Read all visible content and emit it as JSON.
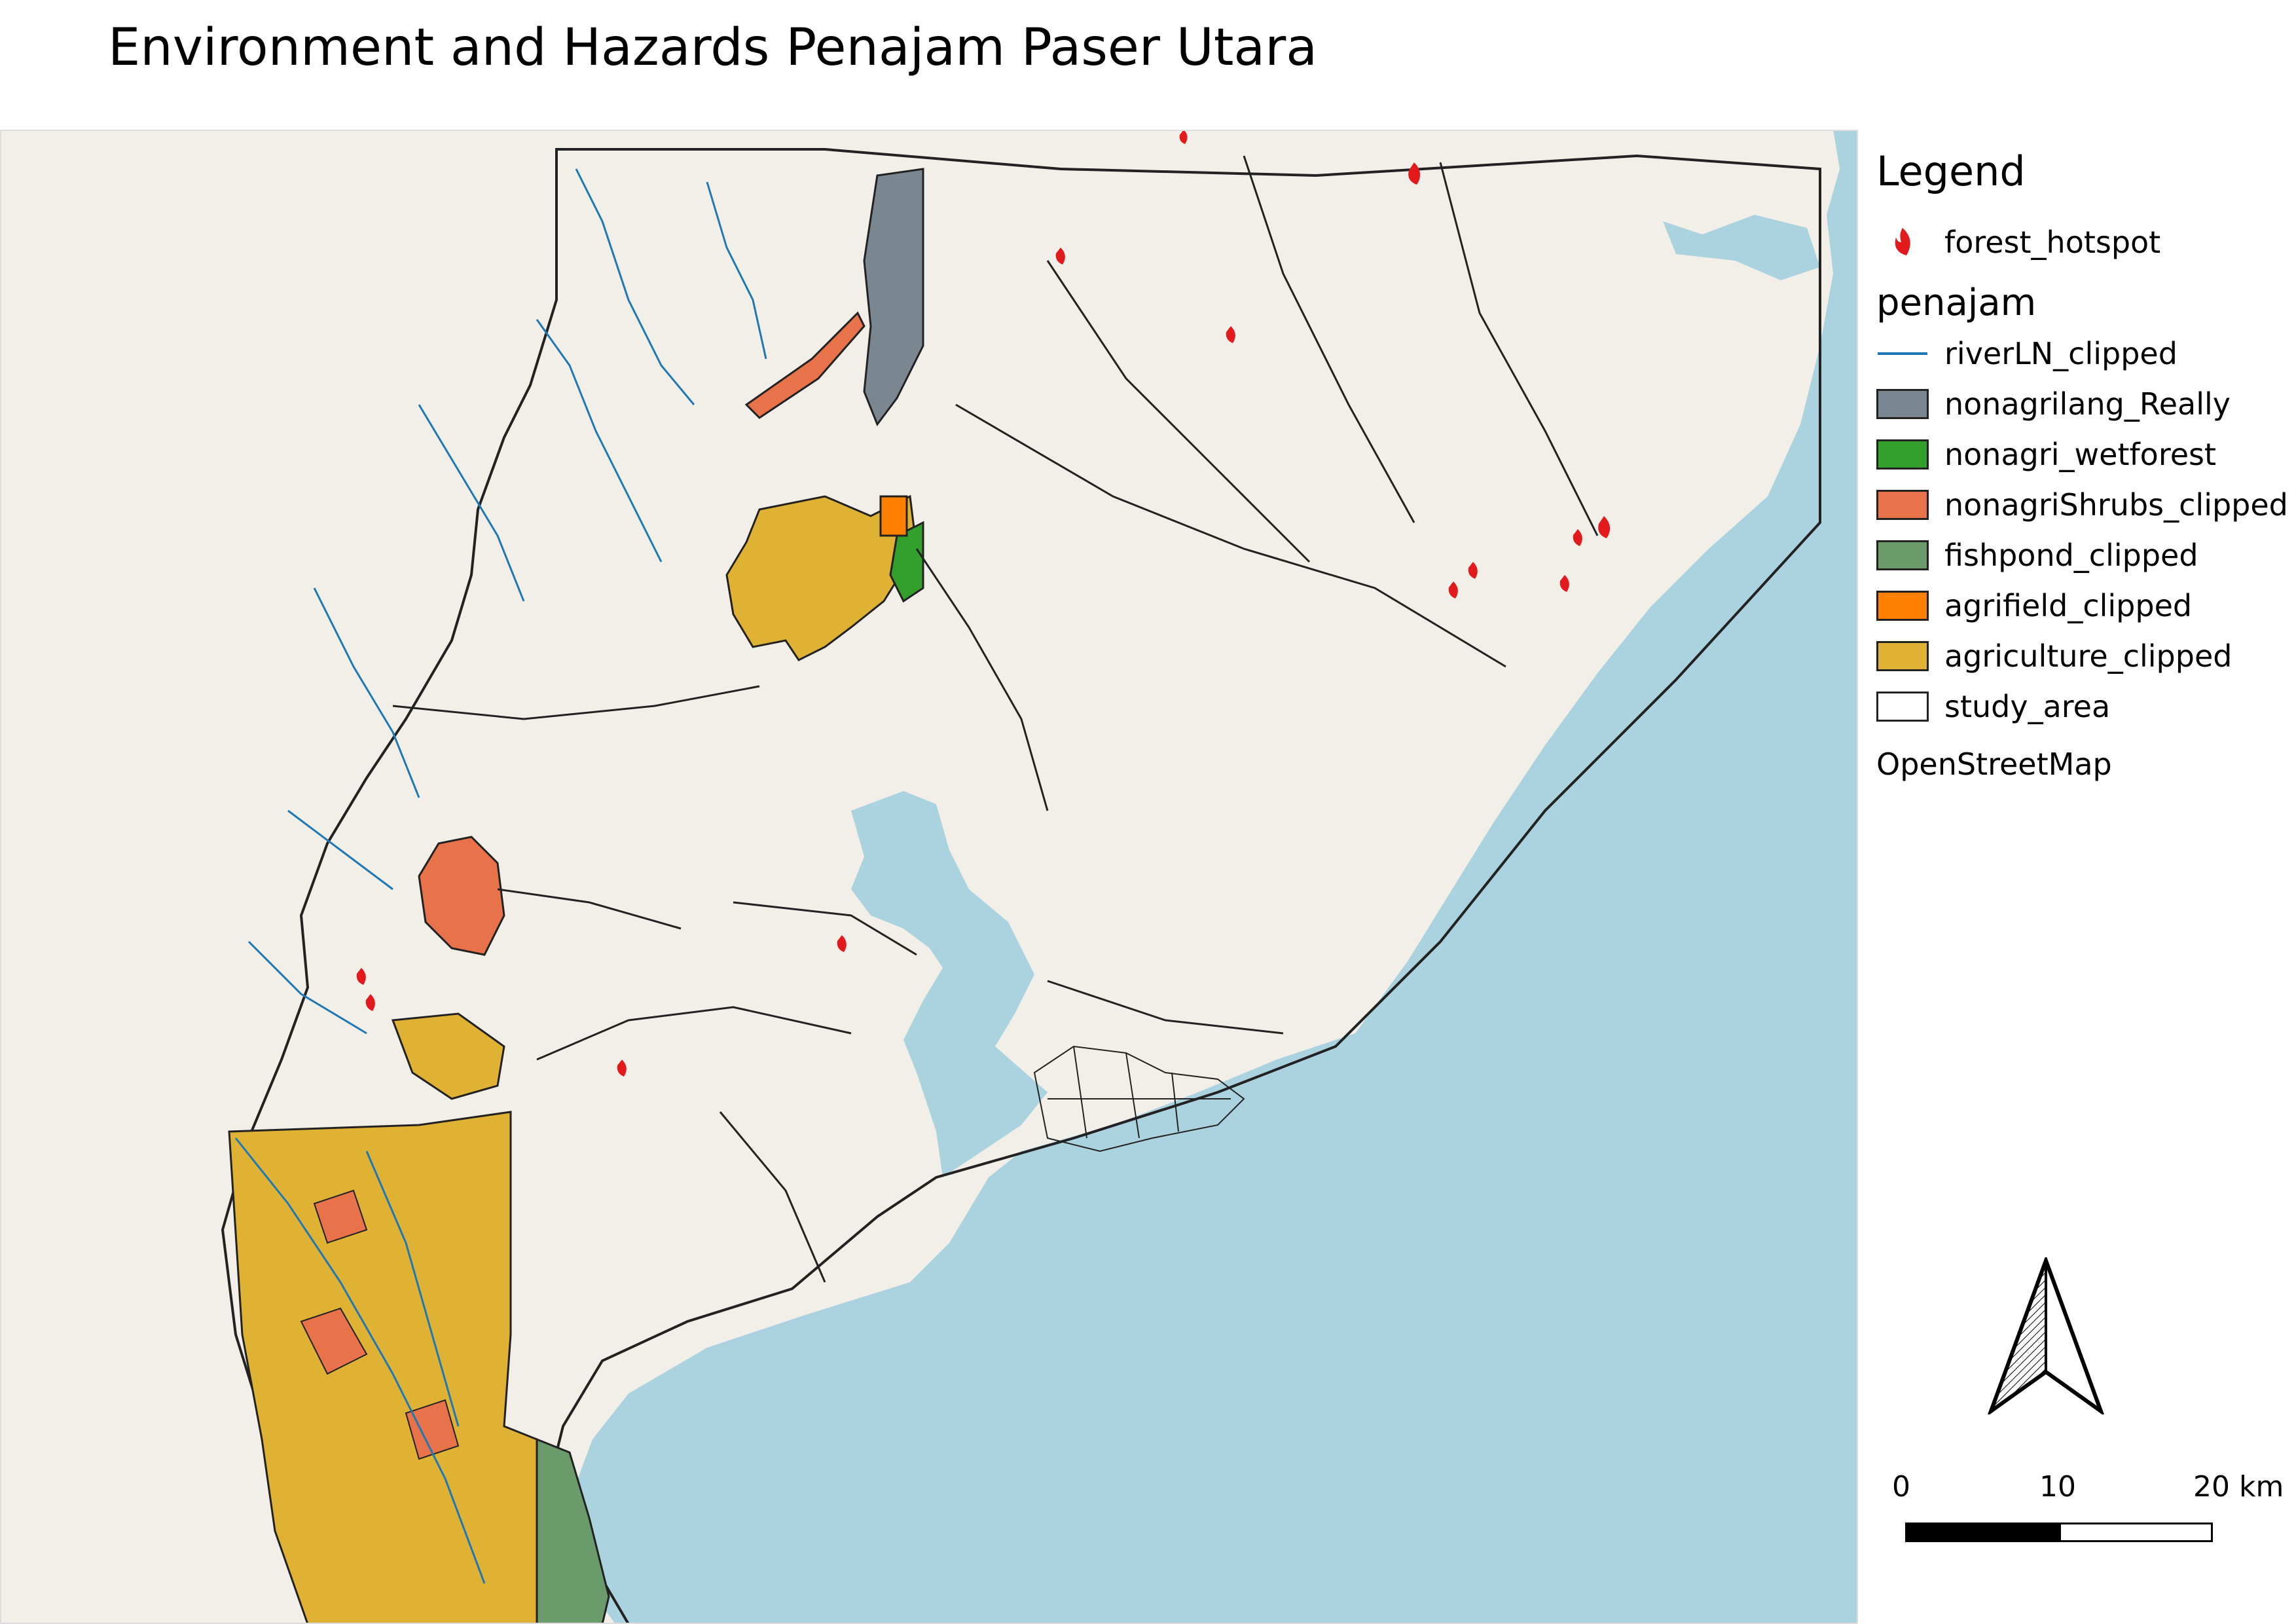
{
  "title": "Environment and Hazards Penajam Paser Utara",
  "legend": {
    "heading": "Legend",
    "hotspot_group": {
      "label": "forest_hotspot",
      "icon": "flame-icon",
      "color": "#e31a1c"
    },
    "group_name": "penajam",
    "items": [
      {
        "label": "riverLN_clipped",
        "kind": "line",
        "color": "#1f78b4"
      },
      {
        "label": "nonagrilang_Really",
        "kind": "fill",
        "color": "#7a8791"
      },
      {
        "label": "nonagri_wetforest",
        "kind": "fill",
        "color": "#33a02c"
      },
      {
        "label": "nonagriShrubs_clipped",
        "kind": "fill",
        "color": "#e8734a"
      },
      {
        "label": "fishpond_clipped",
        "kind": "fill",
        "color": "#6b9a6b"
      },
      {
        "label": "agrifield_clipped",
        "kind": "fill",
        "color": "#ff7f00"
      },
      {
        "label": "agriculture_clipped",
        "kind": "fill",
        "color": "#e0b234"
      },
      {
        "label": "study_area",
        "kind": "fill",
        "color": "#ffffff"
      }
    ],
    "basemap": "OpenStreetMap"
  },
  "scale": {
    "ticks": [
      "0",
      "10",
      "20 km"
    ]
  },
  "colors": {
    "sea": "#aad3df",
    "land": "#f2efe9"
  }
}
